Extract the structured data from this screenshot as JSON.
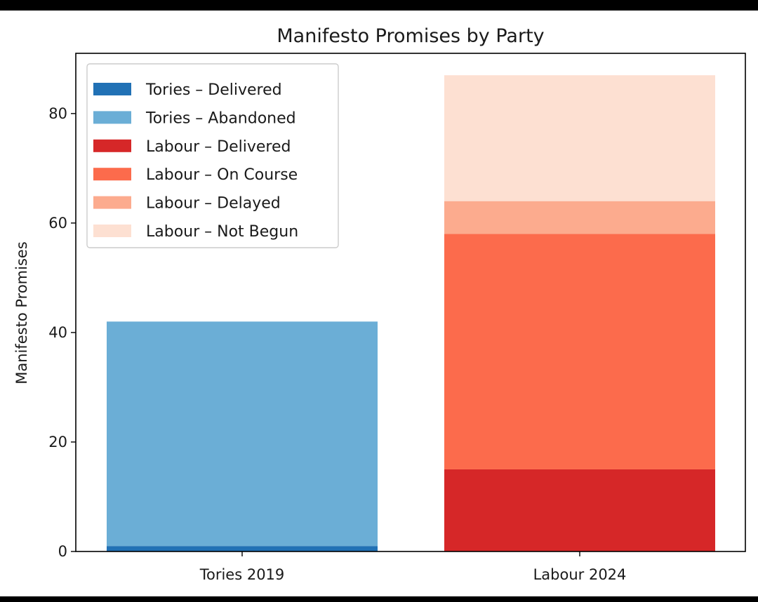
{
  "colors": {
    "tories_delivered": "#2171b5",
    "tories_abandoned": "#6baed6",
    "labour_delivered": "#d62728",
    "labour_on_course": "#fc6b4c",
    "labour_delayed": "#fcab8e",
    "labour_not_begun": "#fde0d2"
  },
  "chart_data": {
    "type": "bar",
    "stacked": true,
    "title": "Manifesto Promises by Party",
    "xlabel": "",
    "ylabel": "Manifesto Promises",
    "ylim": [
      0,
      91
    ],
    "yticks": [
      0,
      20,
      40,
      60,
      80
    ],
    "categories": [
      "Tories 2019",
      "Labour 2024"
    ],
    "legend_position": "top-left",
    "grid": false,
    "series": [
      {
        "name": "Tories – Delivered",
        "values": [
          1,
          0
        ],
        "color": "#2171b5"
      },
      {
        "name": "Tories – Abandoned",
        "values": [
          41,
          0
        ],
        "color": "#6baed6"
      },
      {
        "name": "Labour – Delivered",
        "values": [
          0,
          15
        ],
        "color": "#d62728"
      },
      {
        "name": "Labour – On Course",
        "values": [
          0,
          43
        ],
        "color": "#fc6b4c"
      },
      {
        "name": "Labour – Delayed",
        "values": [
          0,
          6
        ],
        "color": "#fcab8e"
      },
      {
        "name": "Labour – Not Begun",
        "values": [
          0,
          23
        ],
        "color": "#fde0d2"
      }
    ]
  }
}
